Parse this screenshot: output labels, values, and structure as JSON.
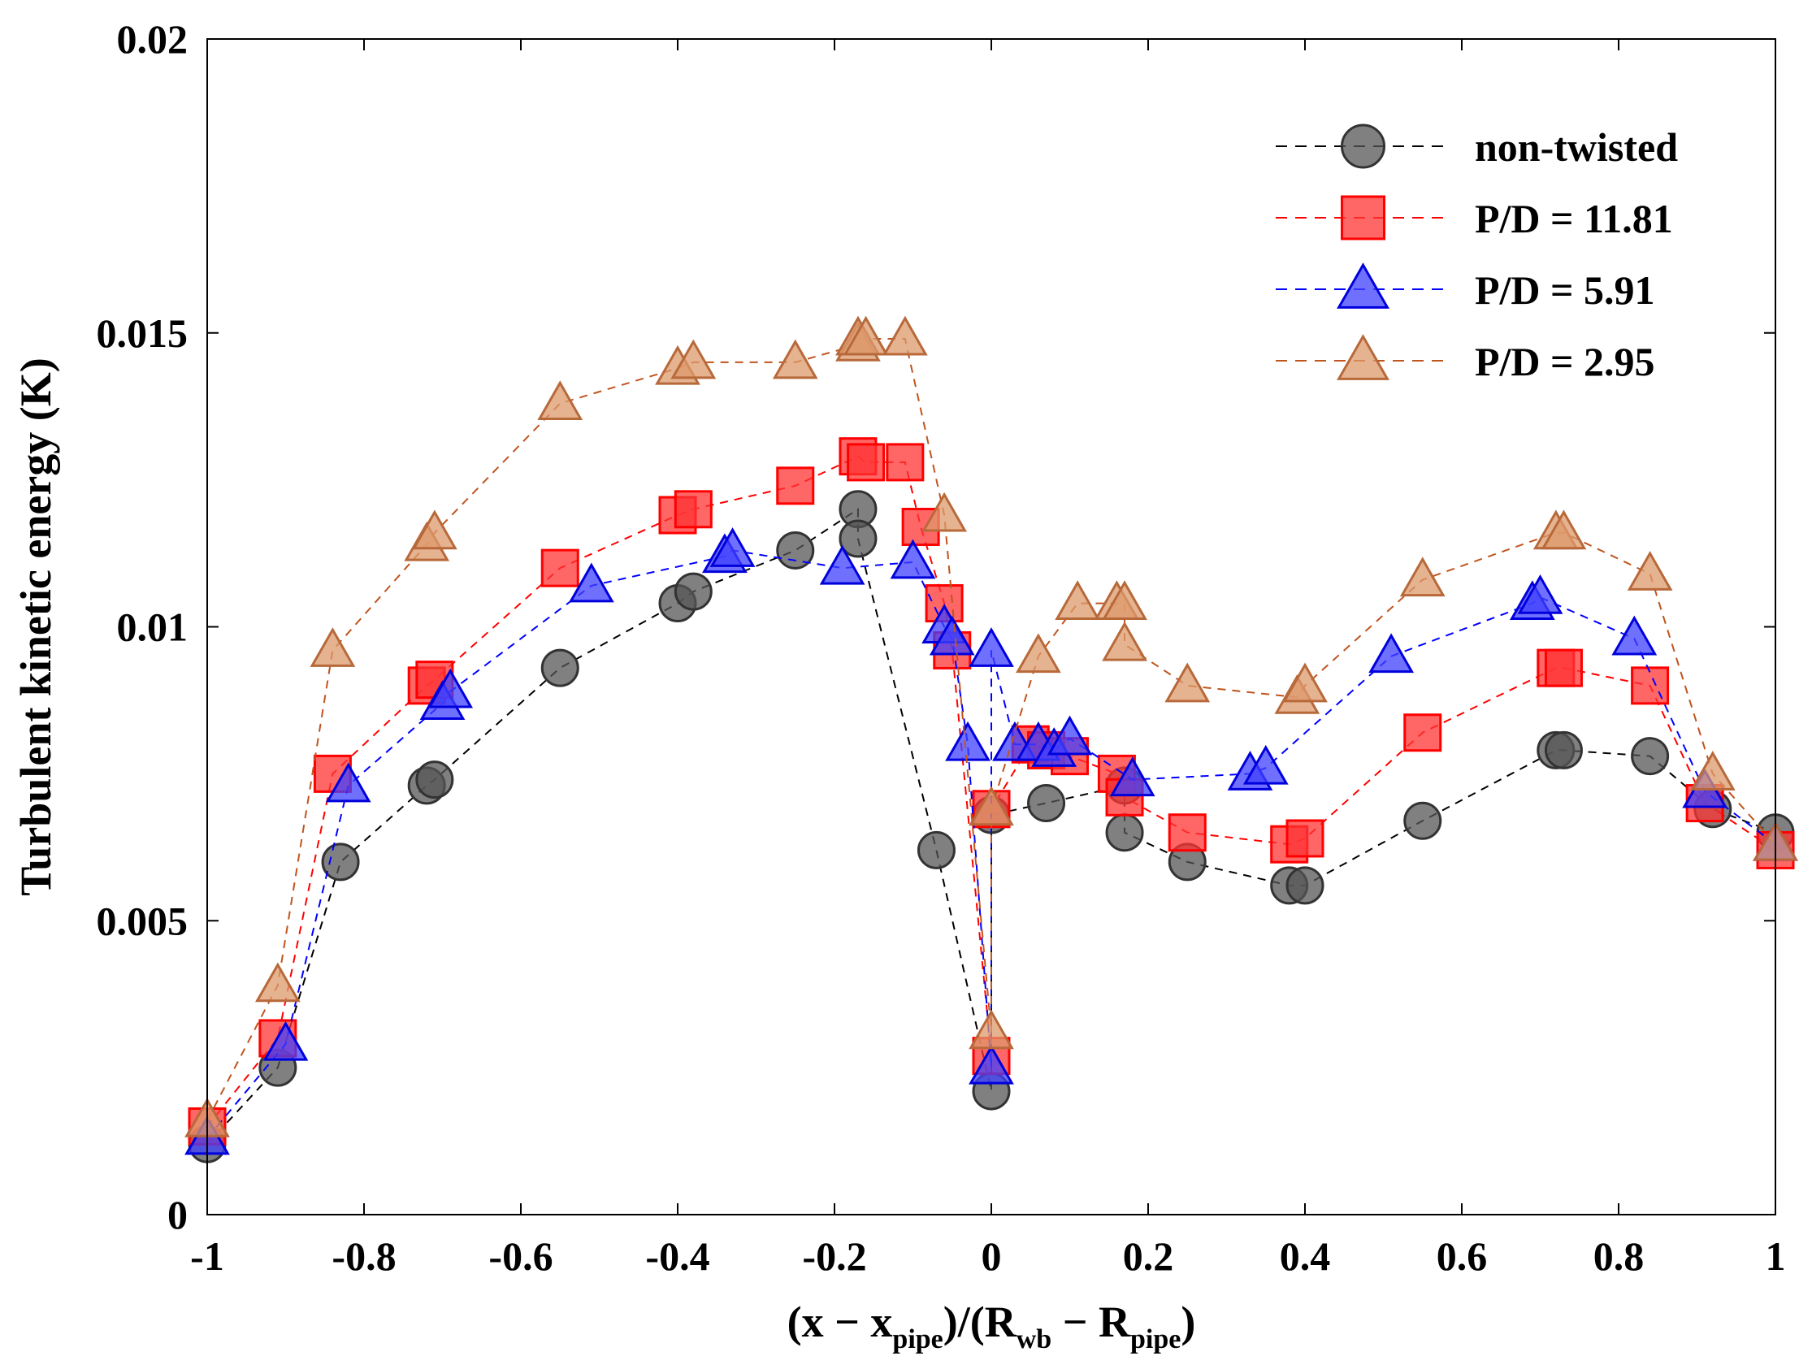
{
  "chart_data": {
    "type": "line",
    "title": "",
    "xlabel": {
      "parts": [
        {
          "t": "(x − x"
        },
        {
          "t": "pipe",
          "sub": true
        },
        {
          "t": ")/(R"
        },
        {
          "t": "wb",
          "sub": true
        },
        {
          "t": " − R"
        },
        {
          "t": "pipe",
          "sub": true
        },
        {
          "t": ")"
        }
      ]
    },
    "ylabel": "Turbulent kinetic energy (K)",
    "xlim": [
      -1,
      1
    ],
    "ylim": [
      0,
      0.02
    ],
    "xticks": [
      "-1",
      "-0.8",
      "-0.6",
      "-0.4",
      "-0.2",
      "0",
      "0.2",
      "0.4",
      "0.6",
      "0.8",
      "1"
    ],
    "yticks": [
      "0",
      "0.005",
      "0.01",
      "0.015",
      "0.02"
    ],
    "legend_position": "top-right",
    "series": [
      {
        "name": "non-twisted",
        "marker": "circle",
        "line_color": "#000000",
        "fill": "#555555",
        "stroke": "#333333",
        "points": [
          [
            -1,
            0.0012
          ],
          [
            -0.91,
            0.0025
          ],
          [
            -0.83,
            0.006
          ],
          [
            -0.72,
            0.0073
          ],
          [
            -0.71,
            0.0074
          ],
          [
            -0.55,
            0.0093
          ],
          [
            -0.4,
            0.0104
          ],
          [
            -0.38,
            0.0106
          ],
          [
            -0.25,
            0.0113
          ],
          [
            -0.17,
            0.012
          ],
          [
            -0.17,
            0.0115
          ],
          [
            -0.07,
            0.0062
          ],
          [
            0,
            0.0021
          ],
          [
            0,
            0.0068
          ],
          [
            0.07,
            0.007
          ],
          [
            0.17,
            0.0073
          ],
          [
            0.17,
            0.0065
          ],
          [
            0.25,
            0.006
          ],
          [
            0.38,
            0.0056
          ],
          [
            0.4,
            0.0056
          ],
          [
            0.55,
            0.0067
          ],
          [
            0.72,
            0.0079
          ],
          [
            0.73,
            0.0079
          ],
          [
            0.84,
            0.0078
          ],
          [
            0.92,
            0.0069
          ],
          [
            1,
            0.0065
          ]
        ]
      },
      {
        "name": "P/D = 11.81",
        "marker": "square",
        "line_color": "#ff0000",
        "fill": "#ff3333",
        "stroke": "#ff0000",
        "points": [
          [
            -1,
            0.0015
          ],
          [
            -0.91,
            0.003
          ],
          [
            -0.84,
            0.0075
          ],
          [
            -0.72,
            0.009
          ],
          [
            -0.71,
            0.0091
          ],
          [
            -0.55,
            0.011
          ],
          [
            -0.4,
            0.0119
          ],
          [
            -0.38,
            0.012
          ],
          [
            -0.25,
            0.0124
          ],
          [
            -0.17,
            0.0129
          ],
          [
            -0.16,
            0.0128
          ],
          [
            -0.11,
            0.0128
          ],
          [
            -0.09,
            0.0117
          ],
          [
            -0.06,
            0.0104
          ],
          [
            -0.05,
            0.0096
          ],
          [
            0,
            0.0027
          ],
          [
            0,
            0.0069
          ],
          [
            0.05,
            0.008
          ],
          [
            0.07,
            0.0079
          ],
          [
            0.1,
            0.0078
          ],
          [
            0.16,
            0.0075
          ],
          [
            0.17,
            0.0071
          ],
          [
            0.25,
            0.0065
          ],
          [
            0.38,
            0.0063
          ],
          [
            0.4,
            0.0064
          ],
          [
            0.55,
            0.0082
          ],
          [
            0.72,
            0.0093
          ],
          [
            0.73,
            0.0093
          ],
          [
            0.84,
            0.009
          ],
          [
            0.91,
            0.007
          ],
          [
            1,
            0.0062
          ]
        ]
      },
      {
        "name": "P/D = 5.91",
        "marker": "triangle",
        "line_color": "#0000ff",
        "fill": "#4040ff",
        "stroke": "#0000dd",
        "points": [
          [
            -1,
            0.0013
          ],
          [
            -0.9,
            0.0029
          ],
          [
            -0.82,
            0.0073
          ],
          [
            -0.7,
            0.0087
          ],
          [
            -0.69,
            0.0089
          ],
          [
            -0.51,
            0.0107
          ],
          [
            -0.34,
            0.0112
          ],
          [
            -0.33,
            0.0113
          ],
          [
            -0.19,
            0.011
          ],
          [
            -0.1,
            0.0111
          ],
          [
            -0.06,
            0.01
          ],
          [
            -0.05,
            0.0098
          ],
          [
            -0.03,
            0.008
          ],
          [
            0,
            0.0025
          ],
          [
            0,
            0.0096
          ],
          [
            0.03,
            0.008
          ],
          [
            0.06,
            0.008
          ],
          [
            0.08,
            0.0079
          ],
          [
            0.1,
            0.0081
          ],
          [
            0.18,
            0.0074
          ],
          [
            0.33,
            0.0075
          ],
          [
            0.35,
            0.0076
          ],
          [
            0.51,
            0.0095
          ],
          [
            0.69,
            0.0104
          ],
          [
            0.7,
            0.0105
          ],
          [
            0.82,
            0.0098
          ],
          [
            0.91,
            0.0072
          ],
          [
            1,
            0.0063
          ]
        ]
      },
      {
        "name": "P/D = 2.95",
        "marker": "triangle",
        "line_color": "#c0541e",
        "fill": "#dd9a6c",
        "stroke": "#b8693a",
        "points": [
          [
            -1,
            0.0016
          ],
          [
            -0.91,
            0.0039
          ],
          [
            -0.84,
            0.0096
          ],
          [
            -0.72,
            0.0114
          ],
          [
            -0.71,
            0.0116
          ],
          [
            -0.55,
            0.0138
          ],
          [
            -0.4,
            0.0144
          ],
          [
            -0.38,
            0.0145
          ],
          [
            -0.25,
            0.0145
          ],
          [
            -0.17,
            0.0148
          ],
          [
            -0.17,
            0.0149
          ],
          [
            -0.16,
            0.0149
          ],
          [
            -0.11,
            0.0149
          ],
          [
            -0.06,
            0.0119
          ],
          [
            0,
            0.0031
          ],
          [
            0,
            0.0069
          ],
          [
            0.06,
            0.0095
          ],
          [
            0.11,
            0.0104
          ],
          [
            0.16,
            0.0104
          ],
          [
            0.17,
            0.0104
          ],
          [
            0.17,
            0.0097
          ],
          [
            0.25,
            0.009
          ],
          [
            0.39,
            0.0088
          ],
          [
            0.4,
            0.009
          ],
          [
            0.55,
            0.0108
          ],
          [
            0.72,
            0.0116
          ],
          [
            0.73,
            0.0116
          ],
          [
            0.84,
            0.0109
          ],
          [
            0.92,
            0.0075
          ],
          [
            1,
            0.0063
          ]
        ]
      }
    ]
  }
}
